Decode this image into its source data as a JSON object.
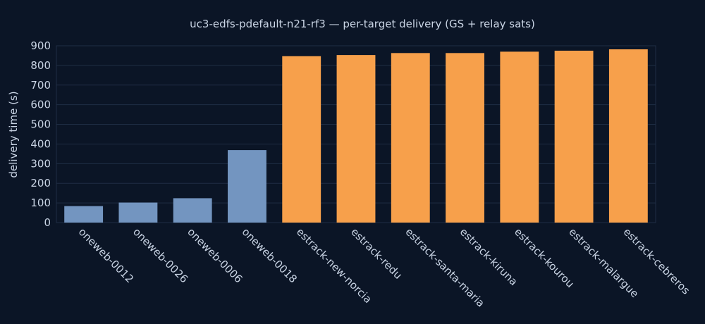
{
  "chart_data": {
    "type": "bar",
    "title": "uc3-edfs-pdefault-n21-rf3 — per-target delivery (GS + relay sats)",
    "xlabel": "",
    "ylabel": "delivery time (s)",
    "ylim": [
      0,
      900
    ],
    "yticks": [
      0,
      100,
      200,
      300,
      400,
      500,
      600,
      700,
      800,
      900
    ],
    "grid": true,
    "categories": [
      "oneweb-0012",
      "oneweb-0026",
      "oneweb-0006",
      "oneweb-0018",
      "estrack-new-norcia",
      "estrack-redu",
      "estrack-santa-maria",
      "estrack-kiruna",
      "estrack-kourou",
      "estrack-malargue",
      "estrack-cebreros"
    ],
    "values": [
      84,
      102,
      124,
      369,
      847,
      853,
      863,
      863,
      870,
      875,
      882
    ],
    "bar_colors": [
      "#7395c0",
      "#7395c0",
      "#7395c0",
      "#7395c0",
      "#f7a04b",
      "#f7a04b",
      "#f7a04b",
      "#f7a04b",
      "#f7a04b",
      "#f7a04b",
      "#f7a04b"
    ]
  }
}
